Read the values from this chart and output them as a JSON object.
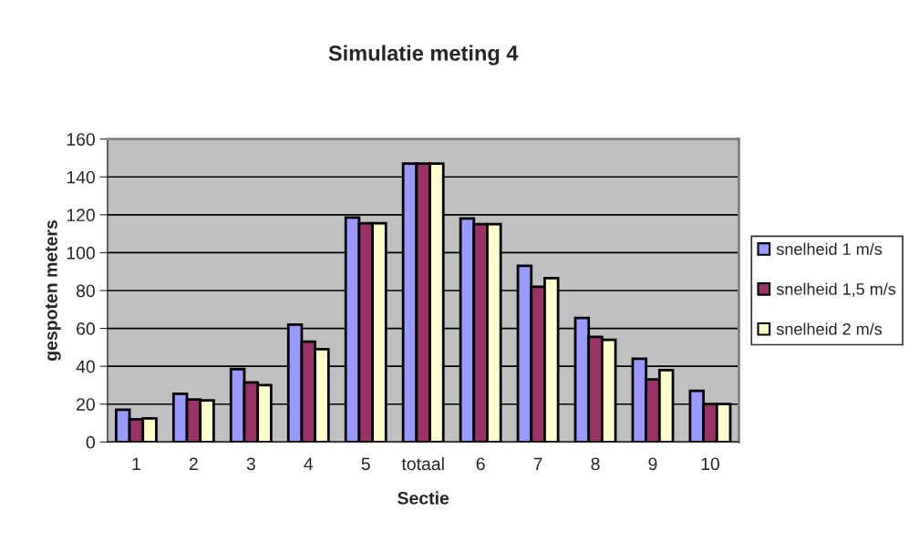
{
  "chart_data": {
    "type": "bar",
    "title": "Simulatie meting 4",
    "xlabel": "Sectie",
    "ylabel": "gespoten meters",
    "categories": [
      "1",
      "2",
      "3",
      "4",
      "5",
      "totaal",
      "6",
      "7",
      "8",
      "9",
      "10"
    ],
    "series": [
      {
        "name": "snelheid 1 m/s",
        "color": "#9999ff",
        "values": [
          17,
          25.5,
          38.5,
          62,
          118.5,
          147,
          118,
          93,
          65.5,
          44,
          27
        ]
      },
      {
        "name": "snelheid 1,5 m/s",
        "color": "#993366",
        "values": [
          12,
          22.5,
          31.5,
          53,
          115.5,
          147,
          115,
          82,
          55.5,
          33,
          20
        ]
      },
      {
        "name": "snelheid 2 m/s",
        "color": "#ffffcc",
        "values": [
          12.5,
          22,
          30,
          49,
          115.5,
          147,
          115,
          86.5,
          54,
          38,
          20
        ]
      }
    ],
    "ylim": [
      0,
      160
    ],
    "yticks": [
      0,
      20,
      40,
      60,
      80,
      100,
      120,
      140,
      160
    ],
    "grid": "y",
    "legend": "right"
  }
}
